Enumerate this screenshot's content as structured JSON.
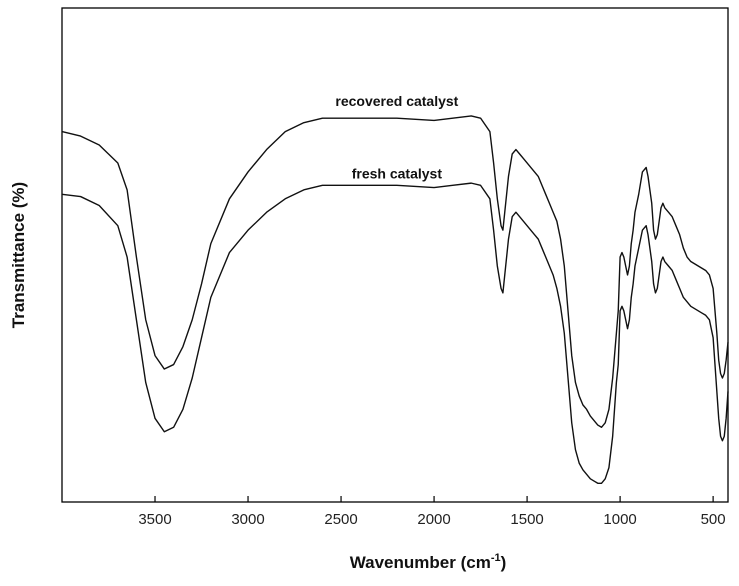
{
  "chart_data": {
    "type": "line",
    "xlabel": "Wavenumber (cm",
    "xlabel_sup": "-1",
    "xlabel_end": ")",
    "ylabel": "Transmittance (%)",
    "xlim": [
      4000,
      420
    ],
    "x_reversed": true,
    "y_ticks_shown": false,
    "x_ticks": [
      3500,
      3000,
      2500,
      2000,
      1500,
      1000,
      500
    ],
    "x_tick_labels": [
      "3500",
      "3000",
      "2500",
      "2000",
      "1500",
      "1000",
      "500"
    ],
    "grid": false,
    "line_color": "#111111",
    "series": [
      {
        "name": "recovered catalyst",
        "x": [
          4000,
          3900,
          3800,
          3700,
          3650,
          3600,
          3550,
          3500,
          3450,
          3400,
          3350,
          3300,
          3250,
          3200,
          3100,
          3000,
          2900,
          2800,
          2700,
          2600,
          2500,
          2400,
          2200,
          2000,
          1900,
          1800,
          1750,
          1700,
          1680,
          1660,
          1640,
          1630,
          1620,
          1600,
          1580,
          1560,
          1540,
          1520,
          1500,
          1480,
          1460,
          1440,
          1420,
          1400,
          1380,
          1360,
          1340,
          1320,
          1300,
          1280,
          1260,
          1240,
          1220,
          1200,
          1180,
          1160,
          1140,
          1120,
          1100,
          1080,
          1060,
          1040,
          1020,
          1010,
          1000,
          990,
          980,
          970,
          960,
          950,
          940,
          930,
          920,
          910,
          900,
          880,
          860,
          850,
          840,
          830,
          820,
          810,
          800,
          790,
          780,
          770,
          760,
          740,
          720,
          700,
          680,
          660,
          640,
          620,
          600,
          580,
          560,
          540,
          520,
          500,
          490,
          480,
          470,
          460,
          450,
          440,
          430,
          420
        ],
        "y": [
          80,
          79,
          77,
          73,
          67,
          52,
          38,
          30,
          27,
          28,
          32,
          38,
          46,
          55,
          65,
          71,
          76,
          80,
          82,
          83,
          83,
          83,
          83,
          82.5,
          83,
          83.5,
          83,
          80,
          73,
          65,
          59,
          58,
          62,
          70,
          75,
          76,
          75,
          74,
          73,
          72,
          71,
          70,
          68,
          66,
          64,
          62,
          60,
          56,
          50,
          40,
          30,
          24,
          21,
          19,
          18,
          16.5,
          15.5,
          14.5,
          14,
          15,
          18,
          25,
          35,
          40,
          52,
          53,
          52,
          50,
          48,
          50,
          55,
          58,
          62,
          64,
          66,
          71,
          72,
          70,
          67,
          64,
          58,
          56,
          57,
          60,
          63,
          64,
          63,
          62,
          61,
          59,
          57,
          54,
          52,
          51,
          50.5,
          50,
          49.5,
          49,
          48,
          45,
          40,
          35,
          29,
          26,
          25,
          26,
          29,
          33
        ]
      },
      {
        "name": "fresh catalyst",
        "x": [
          4000,
          3900,
          3800,
          3700,
          3650,
          3600,
          3550,
          3500,
          3450,
          3400,
          3350,
          3300,
          3250,
          3200,
          3100,
          3000,
          2900,
          2800,
          2700,
          2600,
          2500,
          2400,
          2200,
          2000,
          1900,
          1800,
          1750,
          1700,
          1680,
          1660,
          1640,
          1630,
          1620,
          1600,
          1580,
          1560,
          1540,
          1520,
          1500,
          1480,
          1460,
          1440,
          1420,
          1400,
          1380,
          1360,
          1340,
          1320,
          1300,
          1280,
          1260,
          1240,
          1220,
          1200,
          1180,
          1160,
          1140,
          1120,
          1100,
          1080,
          1060,
          1040,
          1020,
          1010,
          1000,
          990,
          980,
          970,
          960,
          950,
          940,
          930,
          920,
          910,
          900,
          880,
          860,
          850,
          840,
          830,
          820,
          810,
          800,
          790,
          780,
          770,
          760,
          740,
          720,
          700,
          680,
          660,
          640,
          620,
          600,
          580,
          560,
          540,
          520,
          500,
          490,
          480,
          470,
          460,
          450,
          440,
          430,
          420
        ],
        "y": [
          66,
          65.5,
          63.5,
          59,
          52,
          38,
          24,
          16,
          13,
          14,
          18,
          25,
          34,
          43,
          53,
          58,
          62,
          65,
          67,
          68,
          68,
          68,
          68,
          67.5,
          68,
          68.5,
          68,
          65,
          58,
          50,
          45,
          44,
          48,
          56,
          61,
          62,
          61,
          60,
          59,
          58,
          57,
          56,
          54,
          52,
          50,
          48,
          45,
          41,
          35,
          25,
          15,
          9,
          6,
          4.5,
          3.5,
          2.5,
          2,
          1.5,
          1.5,
          2.5,
          5,
          12,
          24,
          28,
          40,
          41,
          40,
          38,
          36,
          38,
          43,
          46,
          50,
          52,
          54,
          58,
          59,
          57,
          54,
          51,
          46,
          44,
          45,
          48,
          51,
          52,
          51,
          50,
          49,
          47,
          45,
          43,
          42,
          41,
          40.5,
          40,
          39.5,
          39,
          38,
          34,
          28,
          22,
          16,
          12,
          11,
          12,
          16,
          22
        ]
      }
    ],
    "ylim": [
      0,
      100
    ]
  }
}
